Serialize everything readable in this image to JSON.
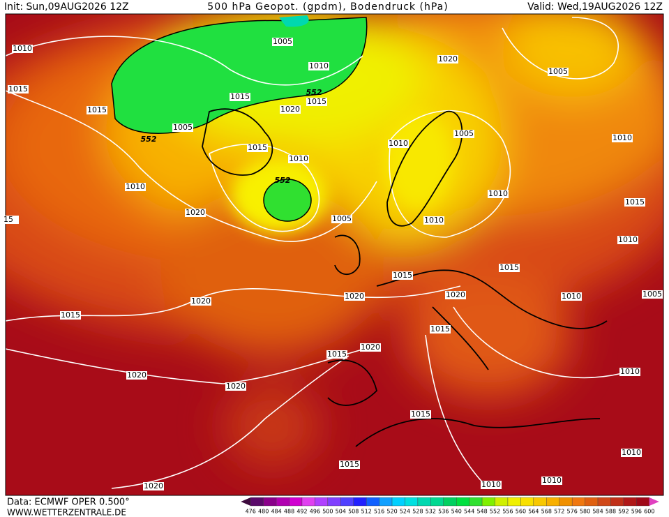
{
  "header": {
    "init": "Init: Sun,09AUG2026 12Z",
    "title": "500 hPa Geopot. (gpdm), Bodendruck (hPa)",
    "valid": "Valid: Wed,19AUG2026 12Z"
  },
  "footer": {
    "source": "Data: ECMWF OPER 0.500°",
    "site": "WWW.WETTERZENTRALE.DE"
  },
  "isobar_labels": [
    "1010",
    "1015",
    "1015",
    "1005",
    "552",
    "1010",
    "1020",
    "15",
    "1020",
    "1015",
    "1020",
    "1020",
    "1020",
    "1005",
    "1010",
    "1015",
    "552",
    "1015",
    "1020",
    "1015",
    "1010",
    "552",
    "1005",
    "1020",
    "1005",
    "1005",
    "1010",
    "1010",
    "1010",
    "1010",
    "1015",
    "1010",
    "1015",
    "1015",
    "1020",
    "1020",
    "1010",
    "1005",
    "1015",
    "1020",
    "1015",
    "1010",
    "1015",
    "1015",
    "1010",
    "1010",
    "1010"
  ],
  "colorbar": {
    "labels": [
      476,
      480,
      484,
      488,
      492,
      496,
      500,
      504,
      508,
      512,
      516,
      520,
      524,
      528,
      532,
      536,
      540,
      544,
      548,
      552,
      556,
      560,
      564,
      568,
      572,
      576,
      580,
      584,
      588,
      592,
      596,
      600
    ],
    "colors": [
      "#3d0a3d",
      "#5a0a6a",
      "#8a008a",
      "#b000b0",
      "#d000d0",
      "#e040f0",
      "#b040ff",
      "#8040ff",
      "#5040ff",
      "#2020ff",
      "#1060ff",
      "#10a0ff",
      "#00d0ff",
      "#00e0e0",
      "#00d8b0",
      "#00d890",
      "#00d060",
      "#00e040",
      "#30e030",
      "#80f000",
      "#d0f000",
      "#f0f000",
      "#f8e000",
      "#f8c800",
      "#f8b000",
      "#f09000",
      "#f07810",
      "#e06010",
      "#d04818",
      "#c03018",
      "#b01818",
      "#a00818",
      "#e040c0"
    ]
  }
}
